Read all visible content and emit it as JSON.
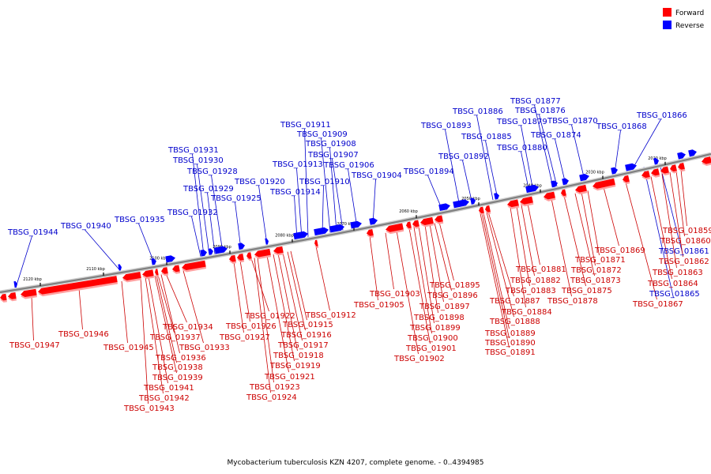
{
  "caption": "Mycobacterium tuberculosis KZN 4207, complete genome. - 0..4394985",
  "legend": [
    {
      "label": "Forward",
      "color": "#ff0000"
    },
    {
      "label": "Reverse",
      "color": "#0000ff"
    }
  ],
  "colors": {
    "forward": "#ff0000",
    "reverse": "#0000ff",
    "forward_label": "#cc0000",
    "reverse_label": "#0000cc",
    "backbone": "#808080"
  },
  "ticks": [
    "2020 kbp",
    "2030 kbp",
    "2040 kbp",
    "2050 kbp",
    "2060 kbp",
    "2070 kbp",
    "2080 kbp",
    "2090 kbp",
    "2100 kbp",
    "2110 kbp",
    "2120 kbp"
  ],
  "forward_genes": [
    "TBSG_01859",
    "TBSG_01860",
    "TBSG_01862",
    "TBSG_01863",
    "TBSG_01864",
    "TBSG_01867",
    "TBSG_01869",
    "TBSG_01871",
    "TBSG_01872",
    "TBSG_01873",
    "TBSG_01875",
    "TBSG_01878",
    "TBSG_01881",
    "TBSG_01882",
    "TBSG_01883",
    "TBSG_01884",
    "TBSG_01887",
    "TBSG_01888",
    "TBSG_01889",
    "TBSG_01890",
    "TBSG_01891",
    "TBSG_01895",
    "TBSG_01896",
    "TBSG_01897",
    "TBSG_01898",
    "TBSG_01899",
    "TBSG_01900",
    "TBSG_01901",
    "TBSG_01902",
    "TBSG_01903",
    "TBSG_01905",
    "TBSG_01912",
    "TBSG_01915",
    "TBSG_01916",
    "TBSG_01917",
    "TBSG_01918",
    "TBSG_01919",
    "TBSG_01921",
    "TBSG_01922",
    "TBSG_01923",
    "TBSG_01924",
    "TBSG_01926",
    "TBSG_01927",
    "TBSG_01933",
    "TBSG_01934",
    "TBSG_01936",
    "TBSG_01937",
    "TBSG_01938",
    "TBSG_01939",
    "TBSG_01941",
    "TBSG_01942",
    "TBSG_01943",
    "TBSG_01945",
    "TBSG_01946",
    "TBSG_01947"
  ],
  "reverse_genes": [
    "TBSG_01861",
    "TBSG_01865",
    "TBSG_01866",
    "TBSG_01868",
    "TBSG_01870",
    "TBSG_01874",
    "TBSG_01876",
    "TBSG_01877",
    "TBSG_01879",
    "TBSG_01880",
    "TBSG_01885",
    "TBSG_01886",
    "TBSG_01892",
    "TBSG_01893",
    "TBSG_01894",
    "TBSG_01904",
    "TBSG_01906",
    "TBSG_01907",
    "TBSG_01908",
    "TBSG_01909",
    "TBSG_01910",
    "TBSG_01911",
    "TBSG_01913",
    "TBSG_01914",
    "TBSG_01920",
    "TBSG_01925",
    "TBSG_01928",
    "TBSG_01929",
    "TBSG_01930",
    "TBSG_01931",
    "TBSG_01932",
    "TBSG_01935",
    "TBSG_01940",
    "TBSG_01944"
  ]
}
